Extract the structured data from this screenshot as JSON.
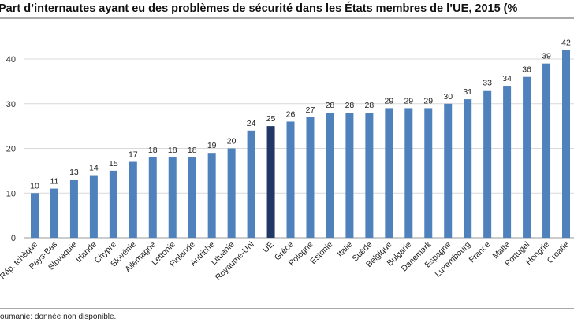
{
  "chart_data": {
    "type": "bar",
    "title": "Part d’internautes ayant eu des problèmes de sécurité dans les États membres de l’UE, 2015 (%",
    "categories": [
      "Rép. tchèque",
      "Pays-Bas",
      "Slovaquie",
      "Irlande",
      "Chypre",
      "Slovénie",
      "Allemagne",
      "Lettonie",
      "Finlande",
      "Autriche",
      "Lituanie",
      "Royaume-Uni",
      "UE",
      "Grèce",
      "Pologne",
      "Estonie",
      "Italie",
      "Suède",
      "Belgique",
      "Bulgarie",
      "Danemark",
      "Espagne",
      "Luxembourg",
      "France",
      "Malte",
      "Portugal",
      "Hongrie",
      "Croatie"
    ],
    "values": [
      10,
      11,
      13,
      14,
      15,
      17,
      18,
      18,
      18,
      19,
      20,
      24,
      25,
      26,
      27,
      28,
      28,
      28,
      29,
      29,
      29,
      30,
      31,
      33,
      34,
      36,
      39,
      42
    ],
    "highlight_category": "UE",
    "ylim": [
      0,
      40
    ],
    "yticks": [
      0,
      10,
      20,
      30,
      40
    ],
    "grid": true,
    "xlabel": "",
    "ylabel": "",
    "colors": {
      "bar": "#4f81bd",
      "highlight": "#1f3864",
      "grid": "#d9d9d9"
    },
    "footnote": "oumanie: donnée non disponible."
  }
}
